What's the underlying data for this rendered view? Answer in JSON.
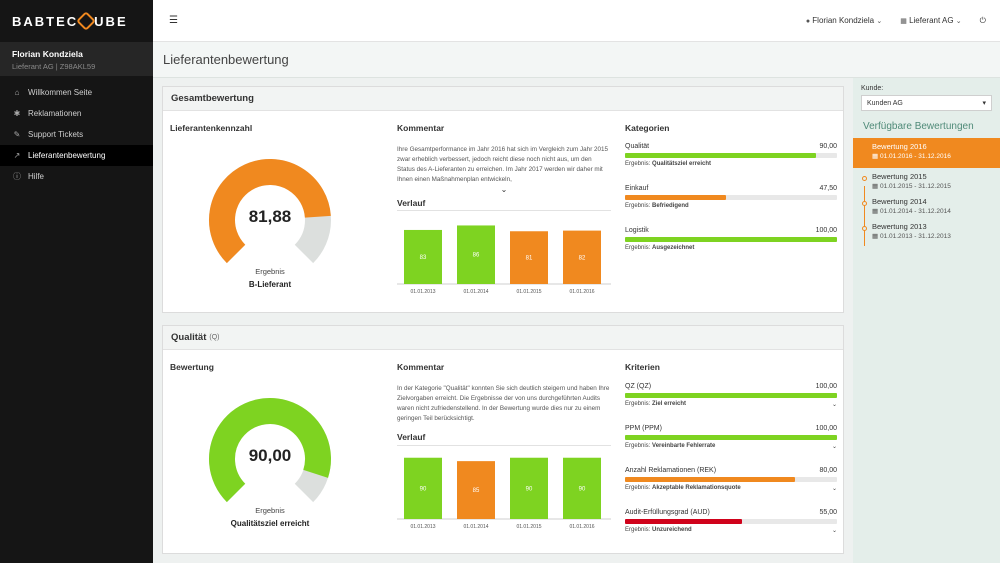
{
  "app": {
    "logo_left": "BABTEC",
    "logo_right": "UBE"
  },
  "sidebar": {
    "user_name": "Florian Kondziela",
    "user_sub": "Lieferant AG | Z98AKL59",
    "items": [
      {
        "label": "Willkommen Seite",
        "icon": "home-icon",
        "glyph": "⌂"
      },
      {
        "label": "Reklamationen",
        "icon": "bug-icon",
        "glyph": "✱"
      },
      {
        "label": "Support Tickets",
        "icon": "wrench-icon",
        "glyph": "✎"
      },
      {
        "label": "Lieferantenbewertung",
        "icon": "chart-icon",
        "glyph": "↗"
      },
      {
        "label": "Hilfe",
        "icon": "info-icon",
        "glyph": "ⓘ"
      }
    ]
  },
  "topbar": {
    "menu_glyph": "☰",
    "user": "Florian Kondziela",
    "company": "Lieferant AG",
    "user_glyph": "●",
    "company_glyph": "▦",
    "caret": "⌄",
    "power_glyph": "⏻"
  },
  "page": {
    "title": "Lieferantenbewertung"
  },
  "gesamt": {
    "title": "Gesamtbewertung",
    "kennzahl_title": "Lieferantenkennzahl",
    "score": "81,88",
    "score_fraction": 0.8188,
    "result_label": "Ergebnis",
    "result": "B-Lieferant",
    "kommentar_title": "Kommentar",
    "kommentar": "Ihre Gesamtperformance im Jahr 2016 hat sich im Vergleich zum Jahr 2015 zwar erheblich verbessert, jedoch reicht diese noch nicht aus, um den Status des A-Lieferanten zu erreichen. Im Jahr 2017 werden wir daher mit Ihnen einen Maßnahmenplan entwickeln,",
    "chev": "⌄",
    "verlauf_title": "Verlauf",
    "kategorien_title": "Kategorien",
    "kategorien": [
      {
        "name": "Qualität",
        "value": "90,00",
        "fraction": 0.9,
        "color": "#7ed321",
        "result_label": "Ergebnis:",
        "result": "Qualitätsziel erreicht"
      },
      {
        "name": "Einkauf",
        "value": "47,50",
        "fraction": 0.475,
        "color": "#f0891f",
        "result_label": "Ergebnis:",
        "result": "Befriedigend"
      },
      {
        "name": "Logistik",
        "value": "100,00",
        "fraction": 1.0,
        "color": "#7ed321",
        "result_label": "Ergebnis:",
        "result": "Ausgezeichnet"
      }
    ]
  },
  "qualitaet": {
    "title": "Qualität",
    "tag": "(Q)",
    "bewertung_title": "Bewertung",
    "score": "90,00",
    "score_fraction": 0.9,
    "result_label": "Ergebnis",
    "result": "Qualitätsziel erreicht",
    "kommentar_title": "Kommentar",
    "kommentar": "In der Kategorie \"Qualität\" konnten Sie sich deutlich steigern und haben Ihre Zielvorgaben erreicht. Die Ergebnisse der von uns durchgeführten Audits waren nicht zufriedenstellend. In der Bewertung wurde dies nur zu einem geringen Teil berücksichtigt.",
    "verlauf_title": "Verlauf",
    "kriterien_title": "Kriterien",
    "kriterien": [
      {
        "name": "QZ (QZ)",
        "value": "100,00",
        "fraction": 1.0,
        "color": "#7ed321",
        "result_label": "Ergebnis:",
        "result": "Ziel erreicht"
      },
      {
        "name": "PPM (PPM)",
        "value": "100,00",
        "fraction": 1.0,
        "color": "#7ed321",
        "result_label": "Ergebnis:",
        "result": "Vereinbarte Fehlerrate"
      },
      {
        "name": "Anzahl Reklamationen (REK)",
        "value": "80,00",
        "fraction": 0.8,
        "color": "#f0891f",
        "result_label": "Ergebnis:",
        "result": "Akzeptable Reklamationsquote"
      },
      {
        "name": "Audit-Erfüllungsgrad (AUD)",
        "value": "55,00",
        "fraction": 0.55,
        "color": "#d0021b",
        "result_label": "Ergebnis:",
        "result": "Unzureichend"
      }
    ],
    "expand_glyph": "⌄"
  },
  "rside": {
    "kunde_label": "Kunde:",
    "kunde_value": "Kunden AG",
    "caret": "▾",
    "title": "Verfügbare Bewertungen",
    "cal_glyph": "▦",
    "items": [
      {
        "title": "Bewertung 2016",
        "dates": "01.01.2016 - 31.12.2016",
        "active": true
      },
      {
        "title": "Bewertung 2015",
        "dates": "01.01.2015 - 31.12.2015",
        "active": false
      },
      {
        "title": "Bewertung 2014",
        "dates": "01.01.2014 - 31.12.2014",
        "active": false
      },
      {
        "title": "Bewertung 2013",
        "dates": "01.01.2013 - 31.12.2013",
        "active": false
      }
    ]
  },
  "chart_data": [
    {
      "type": "bar",
      "categories": [
        "01.01.2013",
        "01.01.2014",
        "01.01.2015",
        "01.01.2016"
      ],
      "values": [
        83,
        86,
        81,
        82
      ],
      "labels": [
        "83",
        "86",
        "81",
        "82"
      ],
      "colors": [
        "#7ed321",
        "#7ed321",
        "#f0891f",
        "#f0891f"
      ],
      "ylim": [
        0,
        100
      ],
      "title": "Verlauf"
    },
    {
      "type": "bar",
      "categories": [
        "01.01.2013",
        "01.01.2014",
        "01.01.2015",
        "01.01.2016"
      ],
      "values": [
        90,
        85,
        90,
        90
      ],
      "labels": [
        "90",
        "85",
        "90",
        "90"
      ],
      "colors": [
        "#7ed321",
        "#f0891f",
        "#7ed321",
        "#7ed321"
      ],
      "ylim": [
        0,
        100
      ],
      "title": "Verlauf"
    }
  ]
}
